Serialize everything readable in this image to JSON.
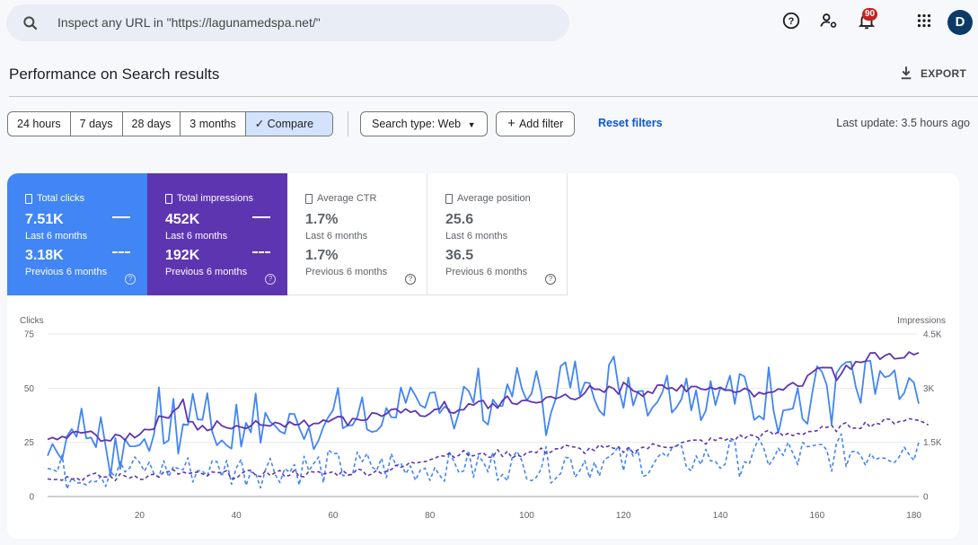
{
  "search": {
    "placeholder": "Inspect any URL in \"https://lagunamedspa.net/\""
  },
  "topbar": {
    "notification_count": "90",
    "avatar_letter": "D"
  },
  "page": {
    "title": "Performance on Search results",
    "export_label": "EXPORT"
  },
  "date_range": {
    "options": [
      "24 hours",
      "7 days",
      "28 days",
      "3 months"
    ],
    "compare_label": "Compare"
  },
  "filters": {
    "search_type": "Search type: Web",
    "add_filter": "Add filter",
    "reset": "Reset filters",
    "last_update": "Last update: 3.5 hours ago"
  },
  "metrics": [
    {
      "label": "Total clicks",
      "value": "7.51K",
      "period": "Last 6 months",
      "prev_value": "3.18K",
      "prev_period": "Previous 6 months",
      "selected": true,
      "color": "#4285f4"
    },
    {
      "label": "Total impressions",
      "value": "452K",
      "period": "Last 6 months",
      "prev_value": "192K",
      "prev_period": "Previous 6 months",
      "selected": true,
      "color": "#5e35b1"
    },
    {
      "label": "Average CTR",
      "value": "1.7%",
      "period": "Last 6 months",
      "prev_value": "1.7%",
      "prev_period": "Previous 6 months",
      "selected": false
    },
    {
      "label": "Average position",
      "value": "25.6",
      "period": "Last 6 months",
      "prev_value": "36.5",
      "prev_period": "Previous 6 months",
      "selected": false
    }
  ],
  "chart_data": {
    "type": "line",
    "left_axis": {
      "label": "Clicks",
      "ticks": [
        "0",
        "25",
        "50",
        "75"
      ],
      "ylim": [
        0,
        75
      ]
    },
    "right_axis": {
      "label": "Impressions",
      "ticks": [
        "0",
        "1.5K",
        "3K",
        "4.5K"
      ],
      "ylim": [
        0,
        4500
      ]
    },
    "x_ticks": [
      "20",
      "40",
      "60",
      "80",
      "100",
      "120",
      "140",
      "160",
      "180"
    ],
    "xlim": [
      1,
      181
    ],
    "grid": true,
    "legend": "none",
    "series": [
      {
        "axis": "left",
        "style": "solid",
        "color": "#4285f4",
        "values": [
          19,
          23,
          28,
          22,
          29,
          31,
          36,
          33,
          25,
          29,
          27,
          31,
          20,
          18,
          27,
          18,
          23,
          30,
          22,
          24,
          33,
          30,
          20,
          41,
          32,
          27,
          36,
          26,
          35,
          32,
          44,
          40,
          42,
          38,
          31,
          29,
          25,
          27,
          29,
          37,
          26,
          37,
          38,
          39,
          30,
          31,
          35,
          38,
          28,
          31,
          33,
          35,
          39,
          32,
          33,
          30,
          35,
          34,
          33,
          37,
          41,
          35,
          34,
          33,
          38,
          39,
          32,
          31,
          35,
          38,
          36,
          44,
          41,
          45,
          36,
          41,
          38,
          35,
          36,
          45,
          47,
          48,
          45,
          43,
          37,
          41,
          47,
          44,
          48,
          50,
          45,
          36,
          43,
          43,
          50,
          42,
          47,
          52,
          48,
          45,
          55,
          52,
          40,
          33,
          48,
          52,
          56,
          58,
          47,
          55,
          52,
          46,
          59,
          54,
          48,
          47,
          60,
          58,
          43,
          48,
          55,
          51,
          53,
          49,
          46,
          44,
          49,
          52,
          50,
          46,
          48,
          55,
          52,
          48,
          51,
          43,
          40,
          55,
          52,
          45,
          50,
          51,
          46,
          48,
          51,
          44,
          40,
          40,
          44,
          52,
          48,
          38,
          46,
          44,
          50,
          48,
          37,
          36,
          47,
          52,
          57,
          53,
          41,
          49,
          57,
          62,
          54,
          47,
          44,
          53,
          55,
          49,
          58,
          51,
          50,
          50,
          44,
          38,
          52,
          46,
          44
        ],
        "jitter_amp": 10
      },
      {
        "axis": "right",
        "style": "solid",
        "color": "#5e35b1",
        "values": [
          1700,
          1500,
          1560,
          1620,
          1650,
          1700,
          1720,
          1760,
          1800,
          1700,
          1640,
          1660,
          1600,
          1550,
          1580,
          1640,
          1660,
          1700,
          1720,
          1800,
          1850,
          1900,
          2000,
          2100,
          2200,
          2300,
          2400,
          2550,
          2650,
          2150,
          2000,
          1900,
          1850,
          1800,
          1900,
          2000,
          2050,
          1950,
          1900,
          1850,
          1900,
          2000,
          2050,
          2100,
          2050,
          2000,
          1950,
          2100,
          2150,
          2050,
          2000,
          2000,
          1980,
          2000,
          2050,
          2050,
          2100,
          2150,
          2200,
          2250,
          2150,
          2100,
          2100,
          2150,
          2200,
          2150,
          2200,
          2250,
          2300,
          2300,
          2250,
          2300,
          2300,
          2350,
          2300,
          2250,
          2400,
          2350,
          2300,
          2400,
          2350,
          2400,
          2500,
          2400,
          2350,
          2450,
          2500,
          2450,
          2500,
          2550,
          2600,
          2500,
          2550,
          2550,
          2600,
          2650,
          2550,
          2600,
          2700,
          2650,
          2600,
          2700,
          2650,
          2650,
          2700,
          2700,
          2750,
          2800,
          2750,
          2800,
          2850,
          2900,
          2950,
          2900,
          2850,
          2900,
          2950,
          3000,
          2950,
          3050,
          3100,
          3000,
          2950,
          2900,
          2950,
          2900,
          2950,
          3000,
          2950,
          3000,
          3050,
          3100,
          3000,
          3050,
          3100,
          3050,
          2950,
          3000,
          3050,
          3000,
          2900,
          2950,
          3000,
          3050,
          3000,
          2950,
          2900,
          2850,
          2950,
          3000,
          2950,
          3000,
          2900,
          2950,
          3050,
          3150,
          3200,
          3250,
          3300,
          3450,
          3500,
          3550,
          3450,
          3350,
          3450,
          3600,
          3650,
          3700,
          3750,
          3800,
          3850,
          3950,
          3900,
          3850,
          3900,
          3950,
          3900,
          3950,
          4050,
          4050,
          4050
        ],
        "jitter_amp": 140
      },
      {
        "axis": "left",
        "style": "dashed",
        "color": "#4285f4",
        "values": [
          13,
          12,
          11,
          12,
          10,
          11,
          13,
          12,
          11,
          10,
          13,
          12,
          11,
          13,
          12,
          11,
          12,
          13,
          12,
          13,
          14,
          12,
          11,
          13,
          12,
          13,
          12,
          14,
          13,
          12,
          13,
          12,
          13,
          14,
          12,
          13,
          14,
          13,
          12,
          14,
          13,
          12,
          13,
          14,
          12,
          13,
          14,
          13,
          14,
          13,
          12,
          14,
          13,
          14,
          13,
          12,
          14,
          13,
          14,
          15,
          13,
          14,
          13,
          12,
          14,
          13,
          14,
          15,
          14,
          13,
          14,
          15,
          13,
          14,
          13,
          12,
          14,
          13,
          15,
          14,
          13,
          14,
          15,
          13,
          14,
          15,
          16,
          14,
          13,
          15,
          14,
          13,
          15,
          14,
          16,
          15,
          14,
          15,
          14,
          16,
          15,
          14,
          16,
          15,
          14,
          16,
          15,
          17,
          16,
          15,
          16,
          17,
          15,
          16,
          17,
          16,
          15,
          17,
          16,
          15,
          17,
          16,
          18,
          17,
          16,
          17,
          18,
          16,
          17,
          18,
          16,
          17,
          18,
          17,
          16,
          18,
          17,
          19,
          18,
          17,
          18,
          19,
          18,
          17,
          19,
          18,
          17,
          19,
          18,
          19,
          20,
          19,
          18,
          20,
          19,
          18,
          20,
          19,
          18,
          20,
          21,
          20,
          19,
          20,
          21,
          20,
          21,
          22,
          21,
          20,
          22,
          21,
          22,
          23,
          22,
          21,
          22,
          23,
          22,
          23,
          22
        ],
        "jitter_amp": 8
      },
      {
        "axis": "right",
        "style": "dashed",
        "color": "#5e35b1",
        "values": [
          560,
          560,
          550,
          540,
          530,
          520,
          510,
          520,
          530,
          540,
          550,
          560,
          540,
          530,
          520,
          540,
          560,
          570,
          580,
          570,
          560,
          570,
          580,
          600,
          620,
          640,
          660,
          650,
          640,
          620,
          600,
          590,
          580,
          590,
          600,
          610,
          620,
          610,
          600,
          590,
          600,
          610,
          620,
          640,
          650,
          640,
          630,
          620,
          630,
          640,
          650,
          660,
          640,
          630,
          620,
          610,
          620,
          630,
          640,
          650,
          660,
          670,
          680,
          690,
          700,
          690,
          680,
          690,
          700,
          720,
          740,
          760,
          780,
          800,
          850,
          900,
          950,
          1000,
          1050,
          1100,
          1130,
          1150,
          1170,
          1180,
          1190,
          1200,
          1180,
          1160,
          1150,
          1140,
          1130,
          1150,
          1170,
          1190,
          1200,
          1180,
          1160,
          1170,
          1180,
          1200,
          1210,
          1230,
          1250,
          1270,
          1300,
          1320,
          1340,
          1360,
          1330,
          1300,
          1290,
          1280,
          1300,
          1320,
          1340,
          1320,
          1300,
          1290,
          1280,
          1290,
          1300,
          1320,
          1330,
          1350,
          1360,
          1380,
          1400,
          1420,
          1430,
          1440,
          1450,
          1460,
          1480,
          1500,
          1510,
          1520,
          1530,
          1540,
          1550,
          1560,
          1580,
          1600,
          1620,
          1640,
          1650,
          1660,
          1680,
          1700,
          1720,
          1740,
          1730,
          1720,
          1700,
          1720,
          1740,
          1760,
          1780,
          1800,
          1820,
          1830,
          1840,
          1860,
          1880,
          1900,
          1920,
          1940,
          1960,
          1980,
          1990,
          2000,
          2020,
          2040,
          2050,
          2060,
          2080,
          2100,
          2120,
          2140,
          2130,
          2120,
          2110,
          2100,
          2080
        ],
        "jitter_amp": 110
      }
    ]
  }
}
